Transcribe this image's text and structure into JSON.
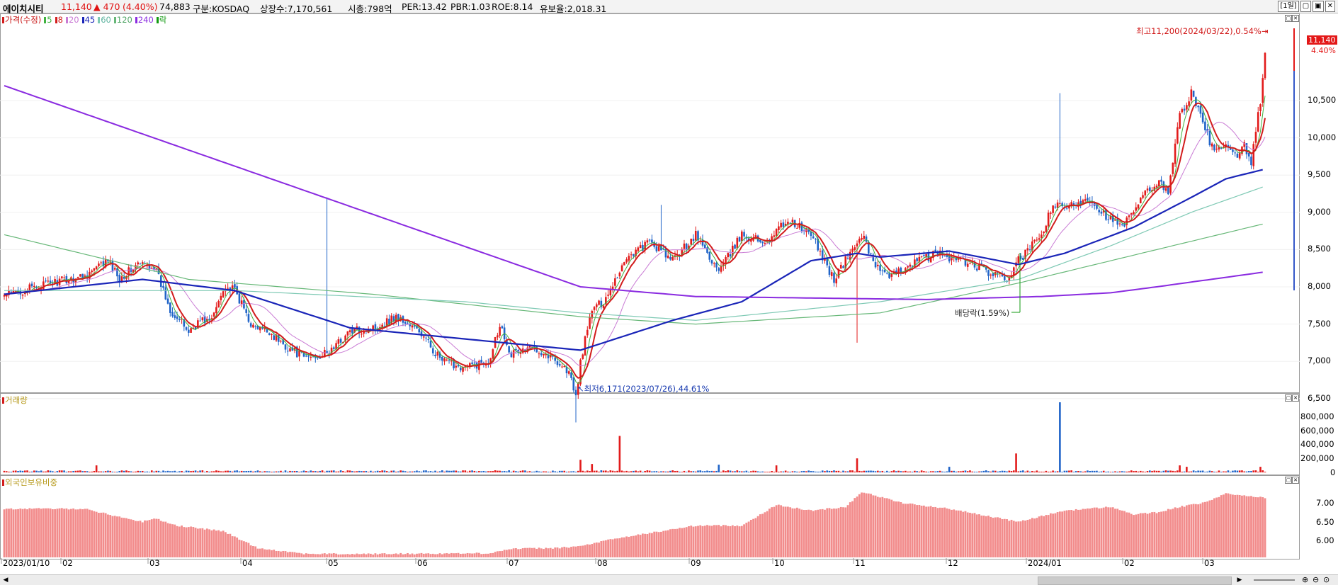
{
  "header": {
    "name": "에이치시티",
    "price": "11,140",
    "change": "▲ 470",
    "change_pct": "(4.40%)",
    "volume": "74,883",
    "market": "구분:KOSDAQ",
    "shares": "상장수:7,170,561",
    "mcap": "시총:798억",
    "per": "PER:13.42",
    "pbr": "PBR:1.03",
    "roe": "ROE:8.14",
    "reserve": "유보율:2,018.31",
    "period": "[1일]"
  },
  "legend": {
    "price": "가격(수정)",
    "ma5": "5",
    "ma8": "8",
    "ma20": "20",
    "ma45": "45",
    "ma60": "60",
    "ma120": "120",
    "ma240": "240",
    "drop": "락"
  },
  "colors": {
    "up": "#e21b1b",
    "down": "#2064c8",
    "ma5": "#3eb23e",
    "ma8": "#d21c1c",
    "ma20": "#c97ad4",
    "ma45": "#1a25b8",
    "ma60": "#7ec9b4",
    "ma120": "#66b777",
    "ma240": "#8a2be0",
    "foreign": "#f28c8c"
  },
  "annotations": {
    "high": "최고11,200(2024/03/22),0.54%",
    "low": "최저6,171(2023/07/26),44.61%",
    "dividend": "배당락(1.59%)"
  },
  "price_badge": {
    "price": "11,140",
    "pct": "4.40%"
  },
  "panels": {
    "volume": "거래량",
    "foreign": "외국인보유비중"
  },
  "chart_data": [
    {
      "type": "candlestick",
      "title": "에이치시티",
      "ylim": [
        6100,
        11400
      ],
      "yticks": [
        "6,500",
        "7,000",
        "7,500",
        "8,000",
        "8,500",
        "9,000",
        "9,500",
        "10,000",
        "10,500"
      ],
      "ytick_values": [
        6500,
        7000,
        7500,
        8000,
        8500,
        9000,
        9500,
        10000,
        10500
      ],
      "x_labels": [
        "2023/01/10",
        "02",
        "03",
        "04",
        "05",
        "06",
        "07",
        "08",
        "09",
        "10",
        "11",
        "12",
        "2024/01",
        "02",
        "03"
      ],
      "anchors": [
        [
          0,
          7880
        ],
        [
          20,
          8050
        ],
        [
          35,
          8150
        ],
        [
          45,
          8350
        ],
        [
          50,
          8120
        ],
        [
          58,
          8300
        ],
        [
          65,
          8280
        ],
        [
          72,
          7700
        ],
        [
          80,
          7400
        ],
        [
          85,
          7550
        ],
        [
          90,
          7550
        ],
        [
          95,
          8000
        ],
        [
          100,
          7950
        ],
        [
          108,
          7450
        ],
        [
          115,
          7400
        ],
        [
          120,
          7250
        ],
        [
          130,
          7050
        ],
        [
          140,
          7100
        ],
        [
          150,
          7400
        ],
        [
          160,
          7450
        ],
        [
          170,
          7600
        ],
        [
          180,
          7400
        ],
        [
          190,
          7000
        ],
        [
          200,
          6920
        ],
        [
          210,
          7000
        ],
        [
          215,
          7500
        ],
        [
          220,
          7100
        ],
        [
          230,
          7200
        ],
        [
          240,
          7000
        ],
        [
          245,
          6850
        ],
        [
          248,
          6500
        ],
        [
          250,
          7000
        ],
        [
          255,
          7700
        ],
        [
          260,
          7800
        ],
        [
          270,
          8400
        ],
        [
          280,
          8600
        ],
        [
          290,
          8350
        ],
        [
          300,
          8700
        ],
        [
          310,
          8200
        ],
        [
          320,
          8700
        ],
        [
          330,
          8600
        ],
        [
          340,
          8900
        ],
        [
          350,
          8700
        ],
        [
          360,
          8100
        ],
        [
          368,
          8500
        ],
        [
          372,
          8700
        ],
        [
          378,
          8300
        ],
        [
          384,
          8100
        ],
        [
          392,
          8300
        ],
        [
          405,
          8450
        ],
        [
          420,
          8300
        ],
        [
          430,
          8150
        ],
        [
          435,
          8100
        ],
        [
          440,
          8350
        ],
        [
          446,
          8550
        ],
        [
          450,
          8700
        ],
        [
          455,
          9100
        ],
        [
          460,
          9050
        ],
        [
          470,
          9200
        ],
        [
          480,
          8900
        ],
        [
          485,
          8800
        ],
        [
          490,
          9000
        ],
        [
          495,
          9250
        ],
        [
          500,
          9400
        ],
        [
          505,
          9300
        ],
        [
          510,
          10300
        ],
        [
          515,
          10600
        ],
        [
          520,
          10200
        ],
        [
          525,
          9800
        ],
        [
          530,
          9900
        ],
        [
          535,
          9700
        ],
        [
          538,
          9900
        ],
        [
          541,
          9650
        ],
        [
          545,
          10500
        ],
        [
          547,
          11140
        ]
      ],
      "ma": {
        "ma240": [
          [
            0,
            10700
          ],
          [
            250,
            8000
          ],
          [
            300,
            7870
          ],
          [
            400,
            7830
          ],
          [
            450,
            7870
          ],
          [
            480,
            7920
          ],
          [
            500,
            8000
          ],
          [
            547,
            8200
          ]
        ],
        "ma45": [
          [
            0,
            7900
          ],
          [
            60,
            8100
          ],
          [
            100,
            7950
          ],
          [
            150,
            7450
          ],
          [
            200,
            7300
          ],
          [
            250,
            7150
          ],
          [
            290,
            7550
          ],
          [
            320,
            7800
          ],
          [
            350,
            8350
          ],
          [
            370,
            8450
          ],
          [
            380,
            8400
          ],
          [
            410,
            8480
          ],
          [
            440,
            8300
          ],
          [
            460,
            8450
          ],
          [
            490,
            8800
          ],
          [
            515,
            9200
          ],
          [
            530,
            9450
          ],
          [
            547,
            9580
          ]
        ],
        "ma60": [
          [
            0,
            7950
          ],
          [
            100,
            7950
          ],
          [
            200,
            7800
          ],
          [
            250,
            7650
          ],
          [
            300,
            7550
          ],
          [
            380,
            7800
          ],
          [
            440,
            8100
          ],
          [
            480,
            8550
          ],
          [
            515,
            9000
          ],
          [
            547,
            9350
          ]
        ],
        "ma120": [
          [
            0,
            8700
          ],
          [
            80,
            8100
          ],
          [
            160,
            7900
          ],
          [
            250,
            7600
          ],
          [
            300,
            7500
          ],
          [
            380,
            7650
          ],
          [
            440,
            8050
          ],
          [
            500,
            8500
          ],
          [
            547,
            8850
          ]
        ]
      }
    },
    {
      "type": "bar",
      "title": "거래량",
      "yticks": [
        "0",
        "200,000",
        "400,000",
        "600,000",
        "800,000"
      ],
      "ytick_values": [
        0,
        200000,
        400000,
        600000,
        800000
      ],
      "ylim": [
        0,
        1000000
      ],
      "spikes": [
        [
          40,
          100000
        ],
        [
          250,
          180000
        ],
        [
          255,
          120000
        ],
        [
          267,
          520000
        ],
        [
          310,
          110000
        ],
        [
          335,
          100000
        ],
        [
          370,
          200000
        ],
        [
          410,
          80000
        ],
        [
          439,
          270000
        ],
        [
          458,
          1000000
        ],
        [
          510,
          100000
        ],
        [
          513,
          80000
        ],
        [
          545,
          80000
        ]
      ]
    },
    {
      "type": "bar",
      "title": "외국인보유비중",
      "yticks": [
        "6.00",
        "6.50",
        "7.00"
      ],
      "ytick_values": [
        6.0,
        6.5,
        7.0
      ],
      "ylim": [
        5.55,
        7.5
      ],
      "anchors": [
        [
          0,
          6.85
        ],
        [
          35,
          6.85
        ],
        [
          45,
          6.7
        ],
        [
          60,
          6.5
        ],
        [
          65,
          6.6
        ],
        [
          75,
          6.4
        ],
        [
          95,
          6.25
        ],
        [
          110,
          5.8
        ],
        [
          130,
          5.65
        ],
        [
          150,
          5.64
        ],
        [
          210,
          5.66
        ],
        [
          220,
          5.78
        ],
        [
          240,
          5.8
        ],
        [
          250,
          5.85
        ],
        [
          265,
          6.05
        ],
        [
          290,
          6.3
        ],
        [
          300,
          6.4
        ],
        [
          320,
          6.4
        ],
        [
          335,
          6.95
        ],
        [
          350,
          6.8
        ],
        [
          365,
          6.9
        ],
        [
          372,
          7.3
        ],
        [
          390,
          7.0
        ],
        [
          410,
          6.85
        ],
        [
          440,
          6.5
        ],
        [
          450,
          6.65
        ],
        [
          460,
          6.8
        ],
        [
          480,
          6.9
        ],
        [
          490,
          6.7
        ],
        [
          500,
          6.75
        ],
        [
          510,
          6.9
        ],
        [
          520,
          7.0
        ],
        [
          530,
          7.25
        ],
        [
          547,
          7.15
        ]
      ]
    }
  ]
}
